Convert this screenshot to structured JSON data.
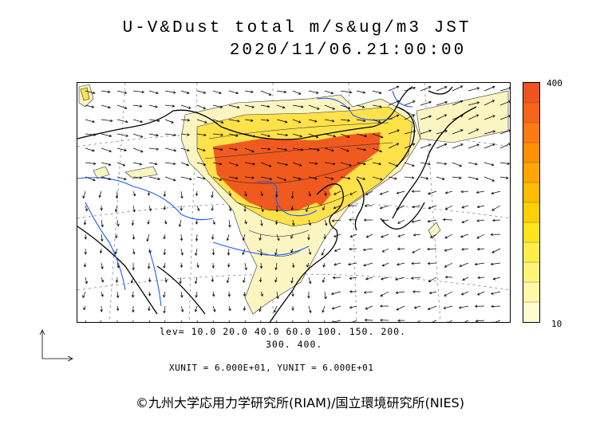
{
  "title": {
    "line1": "U-V&Dust total m/s&ug/m3 JST",
    "line2": "2020/11/06.21:00:00"
  },
  "colorbar": {
    "max_label": "400",
    "min_label": "10",
    "colors": [
      "#fffcd0",
      "#fff8a8",
      "#fff37a",
      "#ffee4a",
      "#ffe41c",
      "#ffd000",
      "#ffbc00",
      "#ffa600",
      "#ff9000",
      "#ff7a10",
      "#f86418",
      "#ef5320"
    ]
  },
  "levels": {
    "line1": "lev= 10.0 20.0 40.0 60.0 100. 150. 200.",
    "line2": "300. 400."
  },
  "units": "XUNIT = 6.000E+01, YUNIT = 6.000E+01",
  "reference_vector_icon": "arrow-axes-icon",
  "copyright": "©九州大学応用力学研究所(RIAM)/国立環境研究所(NIES)",
  "map_colors": {
    "coast": "#000000",
    "rivers": "#1a5cff",
    "dust_high": "#f05a1e",
    "dust_mid": "#ffe14a",
    "dust_low": "#fbf5c2"
  }
}
